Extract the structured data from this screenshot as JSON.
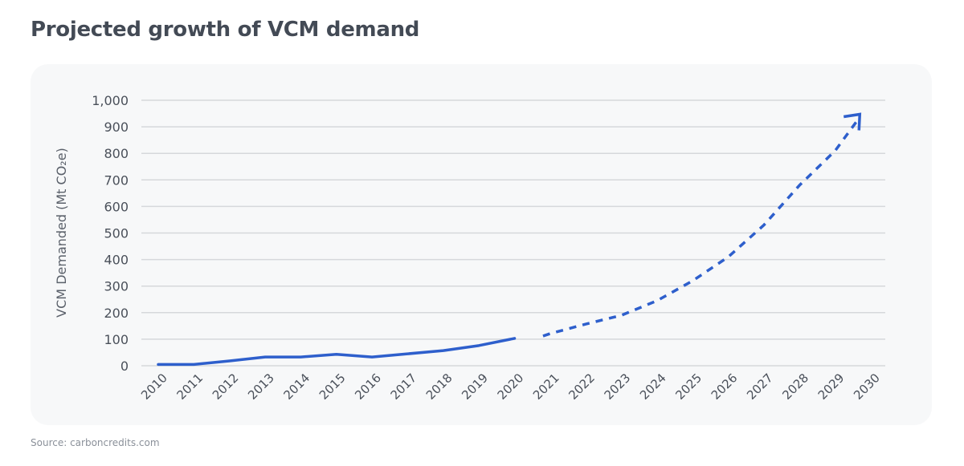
{
  "title": "Projected growth of VCM demand",
  "source": "Source: carboncredits.com",
  "chart_data": {
    "type": "line",
    "title": "Projected growth of VCM demand",
    "xlabel": "",
    "ylabel": "VCM Demanded (Mt CO₂e)",
    "ylim": [
      0,
      1000
    ],
    "xlim": [
      2010,
      2030
    ],
    "grid": true,
    "y_ticks": [
      "0",
      "100",
      "200",
      "300",
      "400",
      "500",
      "600",
      "700",
      "800",
      "900",
      "1,000"
    ],
    "y_tick_values": [
      0,
      100,
      200,
      300,
      400,
      500,
      600,
      700,
      800,
      900,
      1000
    ],
    "x_ticks": [
      "2010",
      "2011",
      "2012",
      "2013",
      "2014",
      "2015",
      "2016",
      "2017",
      "2018",
      "2019",
      "2020",
      "2021",
      "2022",
      "2023",
      "2024",
      "2025",
      "2026",
      "2027",
      "2028",
      "2029",
      "2030"
    ],
    "series": [
      {
        "style": "solid",
        "color": "#2e5fcc",
        "x": [
          2010,
          2011,
          2012,
          2013,
          2014,
          2015,
          2016,
          2017,
          2018,
          2019,
          2020
        ],
        "y": [
          5,
          5,
          18,
          33,
          33,
          43,
          33,
          45,
          57,
          76,
          103
        ]
      },
      {
        "style": "dashed-projection",
        "color": "#2e5fcc",
        "arrow_end": true,
        "x": [
          2020.8,
          2021,
          2022,
          2023,
          2024,
          2025,
          2026,
          2027,
          2028,
          2029,
          2029.6
        ],
        "y": [
          112,
          121,
          157,
          190,
          245,
          320,
          410,
          530,
          680,
          810,
          920
        ]
      }
    ]
  }
}
